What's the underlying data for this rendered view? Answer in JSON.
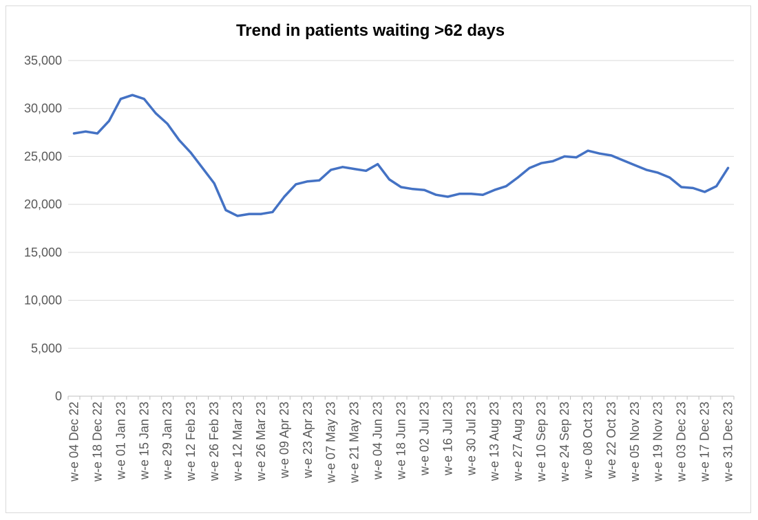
{
  "chart_data": {
    "type": "line",
    "title": "Trend in patients waiting >62 days",
    "xlabel": "",
    "ylabel": "",
    "ylim": [
      0,
      35000
    ],
    "yticks": [
      0,
      5000,
      10000,
      15000,
      20000,
      25000,
      30000,
      35000
    ],
    "ytick_labels": [
      "0",
      "5,000",
      "10,000",
      "15,000",
      "20,000",
      "25,000",
      "30,000",
      "35,000"
    ],
    "grid": true,
    "legend": "none",
    "line_color": "#4472C4",
    "x": [
      "w-e 04 Dec 22",
      "w-e 11 Dec 22",
      "w-e 18 Dec 22",
      "w-e 25 Dec 22",
      "w-e 01 Jan 23",
      "w-e 08 Jan 23",
      "w-e 15 Jan 23",
      "w-e 22 Jan 23",
      "w-e 29 Jan 23",
      "w-e 05 Feb 23",
      "w-e 12 Feb 23",
      "w-e 19 Feb 23",
      "w-e 26 Feb 23",
      "w-e 05 Mar 23",
      "w-e 12 Mar 23",
      "w-e 19 Mar 23",
      "w-e 26 Mar 23",
      "w-e 02 Apr 23",
      "w-e 09 Apr 23",
      "w-e 16 Apr 23",
      "w-e 23 Apr 23",
      "w-e 30 Apr 23",
      "w-e 07 May 23",
      "w-e 14 May 23",
      "w-e 21 May 23",
      "w-e 28 May 23",
      "w-e 04 Jun 23",
      "w-e 11 Jun 23",
      "w-e 18 Jun 23",
      "w-e 25 Jun 23",
      "w-e 02 Jul 23",
      "w-e 09 Jul 23",
      "w-e 16 Jul 23",
      "w-e 23 Jul 23",
      "w-e 30 Jul 23",
      "w-e 06 Aug 23",
      "w-e 13 Aug 23",
      "w-e 20 Aug 23",
      "w-e 27 Aug 23",
      "w-e 03 Sep 23",
      "w-e 10 Sep 23",
      "w-e 17 Sep 23",
      "w-e 24 Sep 23",
      "w-e 01 Oct 23",
      "w-e 08 Oct 23",
      "w-e 15 Oct 23",
      "w-e 22 Oct 23",
      "w-e 29 Oct 23",
      "w-e 05 Nov 23",
      "w-e 12 Nov 23",
      "w-e 19 Nov 23",
      "w-e 26 Nov 23",
      "w-e 03 Dec 23",
      "w-e 10 Dec 23",
      "w-e 17 Dec 23",
      "w-e 24 Dec 23",
      "w-e 31 Dec 23"
    ],
    "x_tick_labels": [
      "w-e 04 Dec 22",
      "",
      "w-e 18 Dec 22",
      "",
      "w-e 01 Jan 23",
      "",
      "w-e 15 Jan 23",
      "",
      "w-e 29 Jan 23",
      "",
      "w-e 12 Feb 23",
      "",
      "w-e 26 Feb 23",
      "",
      "w-e 12 Mar 23",
      "",
      "w-e 26 Mar 23",
      "",
      "w-e 09 Apr 23",
      "",
      "w-e 23 Apr 23",
      "",
      "w-e 07 May 23",
      "",
      "w-e 21 May 23",
      "",
      "w-e 04 Jun 23",
      "",
      "w-e 18 Jun 23",
      "",
      "w-e 02 Jul 23",
      "",
      "w-e 16 Jul 23",
      "",
      "w-e 30 Jul 23",
      "",
      "w-e 13 Aug 23",
      "",
      "w-e 27 Aug 23",
      "",
      "w-e 10 Sep 23",
      "",
      "w-e 24 Sep 23",
      "",
      "w-e 08 Oct 23",
      "",
      "w-e 22 Oct 23",
      "",
      "w-e 05 Nov 23",
      "",
      "w-e 19 Nov 23",
      "",
      "w-e 03 Dec 23",
      "",
      "w-e 17 Dec 23",
      "",
      "w-e 31 Dec 23"
    ],
    "series": [
      {
        "values": [
          27400,
          27600,
          27400,
          28700,
          31000,
          31400,
          31000,
          29500,
          28400,
          26700,
          25400,
          23800,
          22200,
          19400,
          18800,
          19000,
          19000,
          19200,
          20800,
          22100,
          22400,
          22500,
          23600,
          23900,
          23700,
          23500,
          24200,
          22600,
          21800,
          21600,
          21500,
          21000,
          20800,
          21100,
          21100,
          21000,
          21500,
          21900,
          22800,
          23800,
          24300,
          24500,
          25000,
          24900,
          25600,
          25300,
          25100,
          24600,
          24100,
          23600,
          23300,
          22800,
          21800,
          21700,
          21300,
          21900,
          23800
        ]
      }
    ]
  }
}
